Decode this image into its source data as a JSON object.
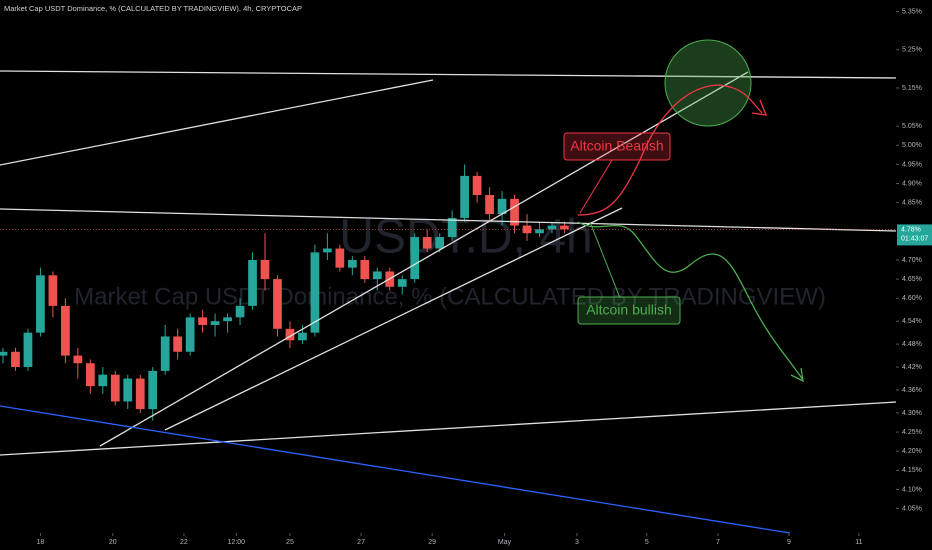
{
  "chart_data": {
    "type": "candlestick",
    "title": "Market Cap USDT Dominance, % (CALCULATED BY TRADINGVIEW), 4h, CRYPTOCAP",
    "watermark_symbol": "USDT.D, 4h",
    "watermark_name": "Market Cap USDT Dominance, % (CALCULATED BY TRADINGVIEW)",
    "annotations": [
      "Altcoin Bearish",
      "Altcoin bullish"
    ],
    "up_color": "#26a69a",
    "down_color": "#ef5350",
    "open": [
      4.45,
      4.46,
      4.42,
      4.51,
      4.66,
      4.58,
      4.45,
      4.43,
      4.37,
      4.4,
      4.33,
      4.39,
      4.31,
      4.41,
      4.5,
      4.46,
      4.55,
      4.53,
      4.54,
      4.55,
      4.58,
      4.7,
      4.65,
      4.52,
      4.49,
      4.51,
      4.72,
      4.73,
      4.68,
      4.7,
      4.65,
      4.67,
      4.63,
      4.65,
      4.76,
      4.73,
      4.76,
      4.81,
      4.92,
      4.87,
      4.82,
      4.86,
      4.79,
      4.77,
      4.78,
      4.79
    ],
    "high": [
      4.47,
      4.47,
      4.52,
      4.68,
      4.67,
      4.6,
      4.47,
      4.44,
      4.42,
      4.41,
      4.4,
      4.4,
      4.42,
      4.53,
      4.52,
      4.56,
      4.57,
      4.56,
      4.56,
      4.6,
      4.72,
      4.77,
      4.66,
      4.54,
      4.53,
      4.74,
      4.77,
      4.74,
      4.71,
      4.71,
      4.68,
      4.68,
      4.66,
      4.77,
      4.78,
      4.77,
      4.83,
      4.95,
      4.93,
      4.89,
      4.88,
      4.87,
      4.82,
      4.8,
      4.8,
      4.8
    ],
    "low": [
      4.43,
      4.41,
      4.41,
      4.5,
      4.55,
      4.43,
      4.39,
      4.35,
      4.35,
      4.32,
      4.31,
      4.3,
      4.28,
      4.4,
      4.44,
      4.45,
      4.51,
      4.5,
      4.51,
      4.53,
      4.57,
      4.62,
      4.5,
      4.47,
      4.48,
      4.5,
      4.7,
      4.67,
      4.66,
      4.64,
      4.62,
      4.62,
      4.61,
      4.64,
      4.72,
      4.72,
      4.75,
      4.8,
      4.85,
      4.8,
      4.79,
      4.77,
      4.75,
      4.76,
      4.77,
      4.77
    ],
    "close": [
      4.46,
      4.42,
      4.51,
      4.66,
      4.58,
      4.45,
      4.43,
      4.37,
      4.4,
      4.33,
      4.39,
      4.31,
      4.41,
      4.5,
      4.46,
      4.55,
      4.53,
      4.54,
      4.55,
      4.58,
      4.7,
      4.65,
      4.52,
      4.49,
      4.51,
      4.72,
      4.73,
      4.68,
      4.7,
      4.65,
      4.67,
      4.63,
      4.65,
      4.76,
      4.73,
      4.76,
      4.81,
      4.92,
      4.87,
      4.82,
      4.86,
      4.79,
      4.77,
      4.78,
      4.79,
      4.78
    ],
    "last_price": {
      "value": 4.78,
      "label": "4.78%"
    },
    "countdown": "01:43:07",
    "xlim": [
      -0.24,
      74.3
    ],
    "ylim": [
      4.02,
      5.38
    ],
    "yticks": [
      {
        "value": 5.35,
        "label": "5.35%"
      },
      {
        "value": 5.25,
        "label": "5.25%"
      },
      {
        "value": 5.15,
        "label": "5.15%"
      },
      {
        "value": 5.05,
        "label": "5.05%"
      },
      {
        "value": 5.0,
        "label": "5.00%"
      },
      {
        "value": 4.95,
        "label": "4.95%"
      },
      {
        "value": 4.9,
        "label": "4.90%"
      },
      {
        "value": 4.85,
        "label": "4.85%"
      },
      {
        "value": 4.7,
        "label": "4.70%"
      },
      {
        "value": 4.65,
        "label": "4.65%"
      },
      {
        "value": 4.6,
        "label": "4.60%"
      },
      {
        "value": 4.54,
        "label": "4.54%"
      },
      {
        "value": 4.48,
        "label": "4.48%"
      },
      {
        "value": 4.42,
        "label": "4.42%"
      },
      {
        "value": 4.36,
        "label": "4.36%"
      },
      {
        "value": 4.3,
        "label": "4.30%"
      },
      {
        "value": 4.25,
        "label": "4.25%"
      },
      {
        "value": 4.2,
        "label": "4.20%"
      },
      {
        "value": 4.15,
        "label": "4.15%"
      },
      {
        "value": 4.1,
        "label": "4.10%"
      },
      {
        "value": 4.05,
        "label": "4.05%"
      }
    ],
    "xticks": [
      {
        "value": 3,
        "label": "18"
      },
      {
        "value": 8.8,
        "label": "20"
      },
      {
        "value": 14.5,
        "label": "22"
      },
      {
        "value": 18.7,
        "label": "12:00"
      },
      {
        "value": 23,
        "label": "25"
      },
      {
        "value": 28.7,
        "label": "27"
      },
      {
        "value": 34.4,
        "label": "29"
      },
      {
        "value": 40.2,
        "label": "May"
      },
      {
        "value": 46,
        "label": "3"
      },
      {
        "value": 51.6,
        "label": "5"
      },
      {
        "value": 57.3,
        "label": "7"
      },
      {
        "value": 63,
        "label": "9"
      },
      {
        "value": 68.6,
        "label": "11"
      }
    ],
    "grid": false
  }
}
